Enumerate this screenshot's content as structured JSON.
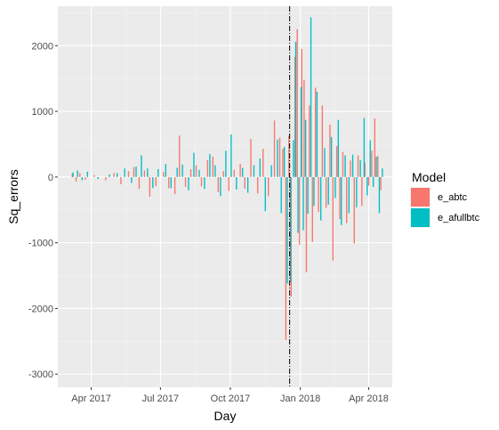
{
  "chart_data": {
    "type": "bar",
    "xlabel": "Day",
    "ylabel": "Sq_errors",
    "x_type": "date",
    "xlim": [
      "2017-02-16",
      "2018-05-02"
    ],
    "ylim": [
      -3200,
      2600
    ],
    "x_ticks": [
      {
        "date": "2017-04-01",
        "label": "Apr 2017"
      },
      {
        "date": "2017-07-01",
        "label": "Jul 2017"
      },
      {
        "date": "2017-10-01",
        "label": "Oct 2017"
      },
      {
        "date": "2018-01-01",
        "label": "Jan 2018"
      },
      {
        "date": "2018-04-01",
        "label": "Apr 2018"
      }
    ],
    "y_ticks": [
      {
        "value": 2000,
        "label": "2000"
      },
      {
        "value": 1000,
        "label": "1000"
      },
      {
        "value": 0,
        "label": "0"
      },
      {
        "value": -1000,
        "label": "-1000"
      },
      {
        "value": -2000,
        "label": "-2000"
      },
      {
        "value": -3000,
        "label": "-3000"
      }
    ],
    "grid": true,
    "vline": {
      "date": "2017-12-18",
      "style": "dot-dash"
    },
    "legend": {
      "title": "Model",
      "position": "right"
    },
    "series": [
      {
        "name": "e_abtc",
        "color": "#F8766D",
        "values": [
          [
            "2017-03-07",
            50
          ],
          [
            "2017-03-12",
            -70
          ],
          [
            "2017-03-17",
            60
          ],
          [
            "2017-03-24",
            -40
          ],
          [
            "2017-04-05",
            30
          ],
          [
            "2017-04-20",
            -50
          ],
          [
            "2017-05-01",
            60
          ],
          [
            "2017-05-10",
            -110
          ],
          [
            "2017-05-20",
            90
          ],
          [
            "2017-05-27",
            150
          ],
          [
            "2017-06-03",
            -180
          ],
          [
            "2017-06-10",
            100
          ],
          [
            "2017-06-17",
            -300
          ],
          [
            "2017-06-25",
            -140
          ],
          [
            "2017-07-05",
            80
          ],
          [
            "2017-07-12",
            -170
          ],
          [
            "2017-07-20",
            -260
          ],
          [
            "2017-07-26",
            630
          ],
          [
            "2017-08-03",
            -150
          ],
          [
            "2017-08-10",
            120
          ],
          [
            "2017-08-17",
            180
          ],
          [
            "2017-08-24",
            -140
          ],
          [
            "2017-09-01",
            260
          ],
          [
            "2017-09-08",
            310
          ],
          [
            "2017-09-15",
            -230
          ],
          [
            "2017-09-22",
            90
          ],
          [
            "2017-09-29",
            -210
          ],
          [
            "2017-10-06",
            110
          ],
          [
            "2017-10-14",
            200
          ],
          [
            "2017-10-20",
            -180
          ],
          [
            "2017-10-28",
            580
          ],
          [
            "2017-11-06",
            -250
          ],
          [
            "2017-11-13",
            430
          ],
          [
            "2017-11-20",
            -290
          ],
          [
            "2017-11-28",
            860
          ],
          [
            "2017-12-05",
            600
          ],
          [
            "2017-12-09",
            430
          ],
          [
            "2017-12-13",
            -2480
          ],
          [
            "2017-12-17",
            630
          ],
          [
            "2017-12-20",
            -1820
          ],
          [
            "2017-12-25",
            1830
          ],
          [
            "2017-12-28",
            2250
          ],
          [
            "2017-12-31",
            -1030
          ],
          [
            "2018-01-03",
            1950
          ],
          [
            "2018-01-06",
            1480
          ],
          [
            "2018-01-09",
            -1450
          ],
          [
            "2018-01-13",
            1090
          ],
          [
            "2018-01-17",
            -990
          ],
          [
            "2018-01-21",
            1360
          ],
          [
            "2018-01-25",
            -530
          ],
          [
            "2018-01-30",
            1090
          ],
          [
            "2018-02-04",
            -470
          ],
          [
            "2018-02-09",
            800
          ],
          [
            "2018-02-13",
            -1270
          ],
          [
            "2018-02-18",
            470
          ],
          [
            "2018-02-22",
            -640
          ],
          [
            "2018-02-26",
            380
          ],
          [
            "2018-03-03",
            -700
          ],
          [
            "2018-03-08",
            250
          ],
          [
            "2018-03-13",
            -1010
          ],
          [
            "2018-03-18",
            330
          ],
          [
            "2018-03-23",
            -440
          ],
          [
            "2018-03-27",
            220
          ],
          [
            "2018-04-01",
            -130
          ],
          [
            "2018-04-05",
            400
          ],
          [
            "2018-04-09",
            890
          ],
          [
            "2018-04-13",
            320
          ],
          [
            "2018-04-17",
            -200
          ]
        ]
      },
      {
        "name": "e_afullbtc",
        "color": "#00BFC4",
        "values": [
          [
            "2017-03-08",
            70
          ],
          [
            "2017-03-14",
            100
          ],
          [
            "2017-03-20",
            -50
          ],
          [
            "2017-03-27",
            80
          ],
          [
            "2017-04-10",
            -30
          ],
          [
            "2017-04-25",
            40
          ],
          [
            "2017-05-05",
            60
          ],
          [
            "2017-05-15",
            130
          ],
          [
            "2017-05-24",
            -90
          ],
          [
            "2017-05-30",
            160
          ],
          [
            "2017-06-06",
            330
          ],
          [
            "2017-06-14",
            130
          ],
          [
            "2017-06-21",
            -170
          ],
          [
            "2017-06-28",
            120
          ],
          [
            "2017-07-08",
            200
          ],
          [
            "2017-07-15",
            -170
          ],
          [
            "2017-07-23",
            140
          ],
          [
            "2017-07-30",
            190
          ],
          [
            "2017-08-07",
            -200
          ],
          [
            "2017-08-14",
            370
          ],
          [
            "2017-08-21",
            110
          ],
          [
            "2017-08-28",
            -180
          ],
          [
            "2017-09-04",
            350
          ],
          [
            "2017-09-11",
            180
          ],
          [
            "2017-09-18",
            -290
          ],
          [
            "2017-09-25",
            400
          ],
          [
            "2017-10-02",
            650
          ],
          [
            "2017-10-09",
            -190
          ],
          [
            "2017-10-17",
            140
          ],
          [
            "2017-10-24",
            -240
          ],
          [
            "2017-11-01",
            180
          ],
          [
            "2017-11-09",
            280
          ],
          [
            "2017-11-16",
            -520
          ],
          [
            "2017-11-24",
            180
          ],
          [
            "2017-12-02",
            570
          ],
          [
            "2017-12-07",
            -550
          ],
          [
            "2017-12-11",
            460
          ],
          [
            "2017-12-15",
            -1620
          ],
          [
            "2017-12-19",
            -1600
          ],
          [
            "2017-12-23",
            560
          ],
          [
            "2017-12-26",
            2060
          ],
          [
            "2017-12-29",
            -850
          ],
          [
            "2018-01-02",
            1370
          ],
          [
            "2018-01-05",
            -810
          ],
          [
            "2018-01-08",
            870
          ],
          [
            "2018-01-11",
            -560
          ],
          [
            "2018-01-15",
            2430
          ],
          [
            "2018-01-19",
            -440
          ],
          [
            "2018-01-23",
            1300
          ],
          [
            "2018-01-28",
            -660
          ],
          [
            "2018-02-02",
            440
          ],
          [
            "2018-02-07",
            -420
          ],
          [
            "2018-02-11",
            610
          ],
          [
            "2018-02-16",
            -320
          ],
          [
            "2018-02-20",
            870
          ],
          [
            "2018-02-24",
            -730
          ],
          [
            "2018-03-01",
            330
          ],
          [
            "2018-03-06",
            -550
          ],
          [
            "2018-03-11",
            340
          ],
          [
            "2018-03-16",
            -460
          ],
          [
            "2018-03-21",
            260
          ],
          [
            "2018-03-26",
            900
          ],
          [
            "2018-03-30",
            -280
          ],
          [
            "2018-04-03",
            560
          ],
          [
            "2018-04-07",
            -150
          ],
          [
            "2018-04-11",
            310
          ],
          [
            "2018-04-15",
            -550
          ],
          [
            "2018-04-19",
            130
          ]
        ]
      }
    ]
  }
}
